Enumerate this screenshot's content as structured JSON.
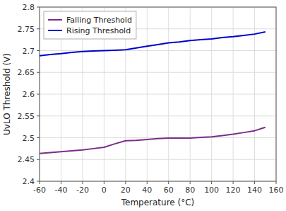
{
  "chart_data": {
    "type": "line",
    "xlabel": "Temperature (°C)",
    "ylabel": "UvLO Threshold (V)",
    "x": [
      -60,
      -50,
      -40,
      -30,
      -20,
      -10,
      0,
      10,
      20,
      30,
      40,
      50,
      60,
      70,
      80,
      90,
      100,
      110,
      120,
      130,
      140,
      150
    ],
    "series": [
      {
        "name": "Falling Threshold",
        "color": "#7B2D8B",
        "values": [
          2.464,
          2.466,
          2.468,
          2.47,
          2.472,
          2.475,
          2.478,
          2.486,
          2.493,
          2.494,
          2.496,
          2.498,
          2.499,
          2.499,
          2.499,
          2.501,
          2.502,
          2.505,
          2.508,
          2.512,
          2.516,
          2.524
        ]
      },
      {
        "name": "Rising Threshold",
        "color": "#0000CC",
        "values": [
          2.688,
          2.691,
          2.693,
          2.696,
          2.698,
          2.699,
          2.7,
          2.701,
          2.702,
          2.706,
          2.71,
          2.714,
          2.718,
          2.72,
          2.723,
          2.725,
          2.727,
          2.73,
          2.732,
          2.735,
          2.738,
          2.743
        ]
      }
    ],
    "xlim": [
      -60,
      160
    ],
    "ylim": [
      2.4,
      2.8
    ],
    "xticks": [
      -60,
      -40,
      -20,
      0,
      20,
      40,
      60,
      80,
      100,
      120,
      140,
      160
    ],
    "yticks": [
      2.4,
      2.45,
      2.5,
      2.55,
      2.6,
      2.65,
      2.7,
      2.75,
      2.8
    ],
    "grid": true,
    "legend": "top-left"
  }
}
